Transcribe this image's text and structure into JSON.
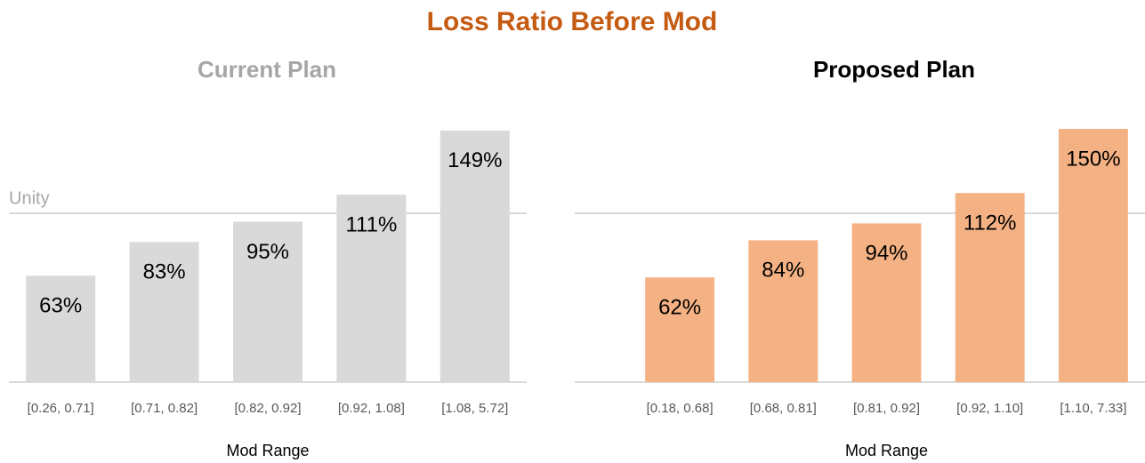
{
  "title": "Loss Ratio Before Mod",
  "chart_data": [
    {
      "type": "bar",
      "title": "Current Plan",
      "title_color": "#a6a6a6",
      "categories": [
        "[0.26, 0.71]",
        "[0.71, 0.82]",
        "[0.82, 0.92]",
        "[0.92, 1.08]",
        "[1.08, 5.72]"
      ],
      "values": [
        63,
        83,
        95,
        111,
        149
      ],
      "value_labels": [
        "63%",
        "83%",
        "95%",
        "111%",
        "149%"
      ],
      "color": "#d9d9d9",
      "x_label": "Mod Range",
      "ylim": [
        0,
        160
      ],
      "reference_line": {
        "value": 100,
        "label": "Unity"
      }
    },
    {
      "type": "bar",
      "title": "Proposed Plan",
      "title_color": "#000000",
      "categories": [
        "[0.18, 0.68]",
        "[0.68, 0.81]",
        "[0.81, 0.92]",
        "[0.92, 1.10]",
        "[1.10, 7.33]"
      ],
      "values": [
        62,
        84,
        94,
        112,
        150
      ],
      "value_labels": [
        "62%",
        "84%",
        "94%",
        "112%",
        "150%"
      ],
      "color": "#f4b183",
      "x_label": "Mod Range",
      "ylim": [
        0,
        160
      ],
      "reference_line": {
        "value": 100
      }
    }
  ]
}
